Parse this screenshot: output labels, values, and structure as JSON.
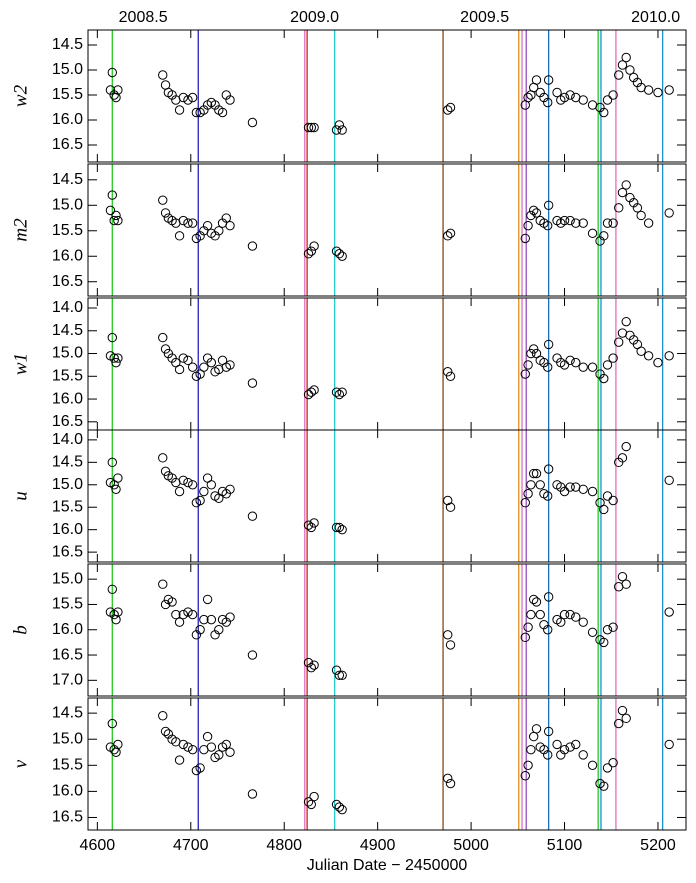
{
  "chart_data": {
    "type": "scatter",
    "xlabel": "Julian Date − 2450000",
    "xlim": [
      4590,
      5230
    ],
    "xticks": [
      4600,
      4700,
      4800,
      4900,
      5000,
      5100,
      5200
    ],
    "top_ticks": [
      {
        "value": 4649,
        "label": "2008.5"
      },
      {
        "value": 4832.5,
        "label": "2009.0"
      },
      {
        "value": 5014.5,
        "label": "2009.5"
      },
      {
        "value": 5197.5,
        "label": "2010.0"
      }
    ],
    "marker_color": "#000000",
    "vlines": [
      {
        "x": 4616,
        "color": "#22cc22"
      },
      {
        "x": 4708,
        "color": "#2222bb"
      },
      {
        "x": 4822,
        "color": "#e070c0"
      },
      {
        "x": 4824.5,
        "color": "#cc2222"
      },
      {
        "x": 4854,
        "color": "#22cccc"
      },
      {
        "x": 4970,
        "color": "#8b4513"
      },
      {
        "x": 5051,
        "color": "#e09020"
      },
      {
        "x": 5054.5,
        "color": "#e070c0"
      },
      {
        "x": 5059,
        "color": "#9050c0"
      },
      {
        "x": 5083,
        "color": "#1a70c0"
      },
      {
        "x": 5136,
        "color": "#22cc22"
      },
      {
        "x": 5139,
        "color": "#1a90d0"
      },
      {
        "x": 5155,
        "color": "#e070c0"
      },
      {
        "x": 5205,
        "color": "#1a90d0"
      }
    ],
    "x": [
      4614,
      4616,
      4618,
      4620,
      4622,
      4670,
      4673,
      4676,
      4680,
      4684,
      4688,
      4692,
      4697,
      4702,
      4706,
      4710,
      4714,
      4718,
      4722,
      4726,
      4730,
      4734,
      4738,
      4742,
      4766,
      4826,
      4829,
      4832,
      4856,
      4859,
      4862,
      4975,
      4978,
      5058,
      5061,
      5064,
      5067,
      5070,
      5074,
      5078,
      5082,
      5083,
      5092,
      5096,
      5100,
      5106,
      5112,
      5120,
      5130,
      5138,
      5142,
      5146,
      5152,
      5158,
      5162,
      5166,
      5170,
      5174,
      5178,
      5182,
      5190,
      5200,
      5212
    ],
    "panels": [
      {
        "ylabel": "w2",
        "ylim": [
          16.84,
          14.2
        ],
        "yticks": [
          14.5,
          {
            "value": 15,
            "label": "15.0"
          },
          15.5,
          {
            "value": 16,
            "label": "16.0"
          },
          16.5
        ],
        "values": [
          15.4,
          15.05,
          15.5,
          15.55,
          15.4,
          15.1,
          15.3,
          15.45,
          15.5,
          15.6,
          15.8,
          15.55,
          15.6,
          15.55,
          15.85,
          15.85,
          15.8,
          15.7,
          15.65,
          15.7,
          15.8,
          15.85,
          15.5,
          15.6,
          16.05,
          16.15,
          16.15,
          16.15,
          16.2,
          16.1,
          16.2,
          15.8,
          15.75,
          15.7,
          15.55,
          15.5,
          15.35,
          15.2,
          15.45,
          15.55,
          15.65,
          15.2,
          15.45,
          15.6,
          15.55,
          15.5,
          15.55,
          15.6,
          15.7,
          15.75,
          15.85,
          15.6,
          15.5,
          15.1,
          14.9,
          14.75,
          15.0,
          15.15,
          15.25,
          15.35,
          15.4,
          15.45,
          15.4
        ]
      },
      {
        "ylabel": "m2",
        "ylim": [
          16.78,
          14.19
        ],
        "yticks": [
          14.5,
          {
            "value": 15,
            "label": "15.0"
          },
          15.5,
          {
            "value": 16,
            "label": "16.0"
          },
          16.5
        ],
        "values": [
          15.1,
          14.8,
          15.3,
          15.2,
          15.3,
          14.9,
          15.15,
          15.25,
          15.3,
          15.35,
          15.6,
          15.3,
          15.35,
          15.35,
          15.65,
          15.6,
          15.5,
          15.4,
          15.55,
          15.6,
          15.5,
          15.35,
          15.25,
          15.4,
          15.8,
          15.95,
          15.9,
          15.8,
          15.9,
          15.95,
          16.0,
          15.6,
          15.55,
          15.65,
          15.4,
          15.2,
          15.1,
          15.15,
          15.3,
          15.35,
          15.4,
          15.0,
          15.3,
          15.35,
          15.3,
          15.3,
          15.35,
          15.35,
          15.55,
          15.7,
          15.6,
          15.35,
          15.35,
          15.05,
          14.75,
          14.6,
          14.85,
          14.95,
          15.05,
          15.2,
          15.35,
          null,
          15.15
        ]
      },
      {
        "ylabel": "w1",
        "ylim": [
          16.68,
          13.78
        ],
        "yticks": [
          {
            "value": 14,
            "label": "14.0"
          },
          14.5,
          {
            "value": 15,
            "label": "15.0"
          },
          15.5,
          {
            "value": 16,
            "label": "16.0"
          },
          16.5
        ],
        "values": [
          15.05,
          14.65,
          15.1,
          15.2,
          15.1,
          14.65,
          14.9,
          15.0,
          15.1,
          15.2,
          15.35,
          15.1,
          15.15,
          15.3,
          15.5,
          15.45,
          15.3,
          15.1,
          15.2,
          15.4,
          15.35,
          15.15,
          15.3,
          15.25,
          15.65,
          15.9,
          15.85,
          15.8,
          15.85,
          15.9,
          15.85,
          15.4,
          15.5,
          15.45,
          15.25,
          15.0,
          14.9,
          15.0,
          15.15,
          15.2,
          15.3,
          14.8,
          15.1,
          15.2,
          15.25,
          15.15,
          15.2,
          15.3,
          15.3,
          15.45,
          15.55,
          15.25,
          15.1,
          14.75,
          14.55,
          14.3,
          14.6,
          14.7,
          14.8,
          14.95,
          15.05,
          15.2,
          15.05
        ]
      },
      {
        "ylabel": "u",
        "ylim": [
          16.72,
          13.78
        ],
        "yticks": [
          {
            "value": 14,
            "label": "14.0"
          },
          14.5,
          {
            "value": 15,
            "label": "15.0"
          },
          15.5,
          {
            "value": 16,
            "label": "16.0"
          },
          16.5
        ],
        "values": [
          14.95,
          14.5,
          15.0,
          15.1,
          14.85,
          14.4,
          14.7,
          14.8,
          14.85,
          14.95,
          15.15,
          14.9,
          14.95,
          15.0,
          15.4,
          15.35,
          15.15,
          14.85,
          15.0,
          15.25,
          15.3,
          15.15,
          15.2,
          15.1,
          15.7,
          15.9,
          15.95,
          15.85,
          15.95,
          15.95,
          16.0,
          15.35,
          15.5,
          15.4,
          15.2,
          15.0,
          14.75,
          14.75,
          15.0,
          15.2,
          15.25,
          14.65,
          15.0,
          15.05,
          15.15,
          15.05,
          15.05,
          15.1,
          15.15,
          15.4,
          15.55,
          15.25,
          15.35,
          14.5,
          14.4,
          14.15,
          null,
          null,
          null,
          null,
          null,
          null,
          14.9
        ]
      },
      {
        "ylabel": "b",
        "ylim": [
          17.31,
          14.7
        ],
        "yticks": [
          {
            "value": 15,
            "label": "15.0"
          },
          15.5,
          {
            "value": 16,
            "label": "16.0"
          },
          16.5,
          {
            "value": 17,
            "label": "17.0"
          }
        ],
        "values": [
          15.65,
          15.2,
          15.7,
          15.8,
          15.65,
          15.1,
          15.5,
          15.4,
          15.45,
          15.7,
          15.85,
          15.7,
          15.65,
          15.7,
          16.1,
          16.0,
          15.8,
          15.4,
          15.8,
          16.1,
          16.0,
          15.8,
          15.85,
          15.75,
          16.5,
          16.65,
          16.75,
          16.7,
          16.8,
          16.9,
          16.9,
          16.1,
          16.3,
          16.15,
          15.95,
          15.7,
          15.4,
          15.45,
          15.7,
          15.9,
          16.0,
          15.35,
          15.8,
          15.85,
          15.7,
          15.7,
          15.75,
          15.85,
          16.05,
          16.2,
          16.25,
          16.0,
          15.95,
          15.15,
          14.95,
          15.1,
          null,
          null,
          null,
          null,
          null,
          null,
          15.65
        ]
      },
      {
        "ylabel": "v",
        "ylim": [
          16.74,
          14.21
        ],
        "yticks": [
          14.5,
          {
            "value": 15,
            "label": "15.0"
          },
          15.5,
          {
            "value": 16,
            "label": "16.0"
          },
          16.5
        ],
        "values": [
          15.15,
          14.7,
          15.2,
          15.25,
          15.1,
          14.55,
          14.85,
          14.9,
          15.0,
          15.05,
          15.4,
          15.1,
          15.15,
          15.2,
          15.6,
          15.55,
          15.2,
          14.95,
          15.15,
          15.35,
          15.3,
          15.15,
          15.1,
          15.25,
          16.05,
          16.2,
          16.25,
          16.1,
          16.25,
          16.3,
          16.35,
          15.75,
          15.85,
          15.7,
          15.5,
          15.2,
          14.95,
          14.8,
          15.15,
          15.2,
          15.3,
          14.85,
          15.1,
          15.3,
          15.2,
          15.15,
          15.1,
          15.3,
          15.5,
          15.85,
          15.9,
          15.55,
          15.45,
          14.7,
          14.45,
          14.6,
          null,
          null,
          null,
          null,
          null,
          null,
          15.1
        ]
      }
    ]
  }
}
